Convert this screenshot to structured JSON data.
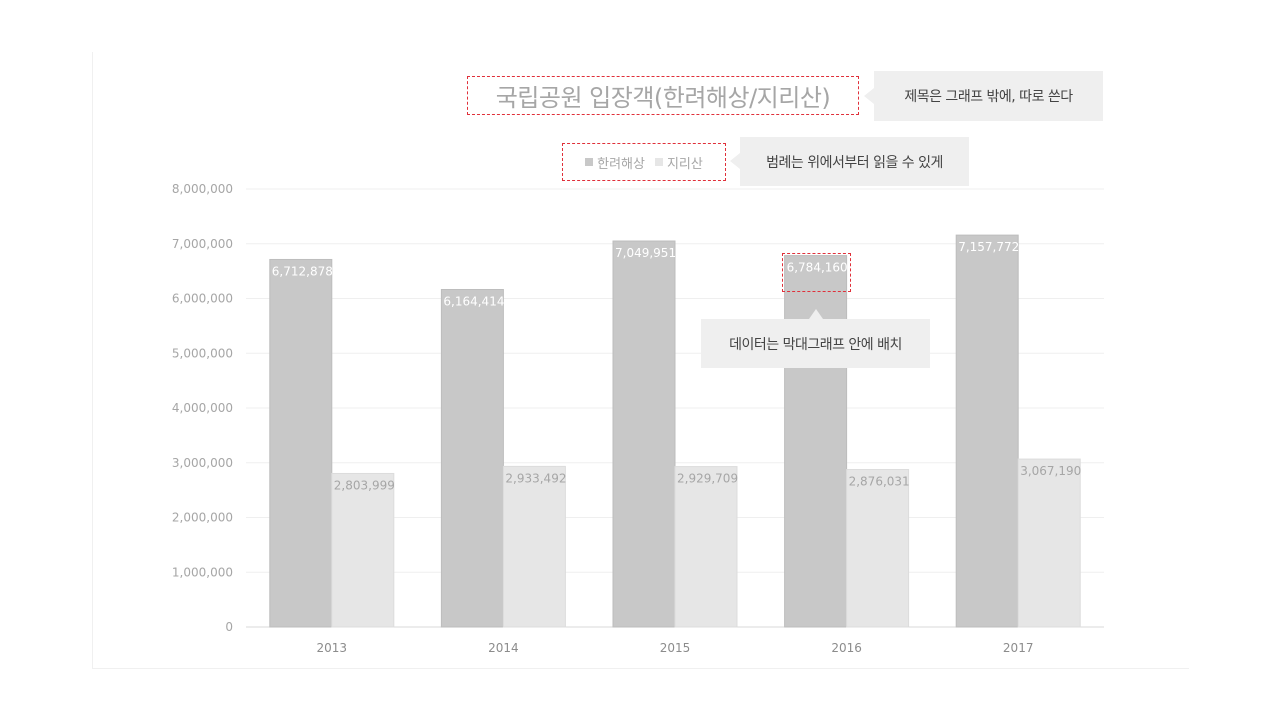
{
  "annotations": {
    "title_note": "제목은 그래프 밖에, 따로 쓴다",
    "legend_note": "범례는 위에서부터 읽을 수 있게",
    "data_note": "데이터는 막대그래프 안에 배치"
  },
  "colors": {
    "series_a": "#c8c8c8",
    "series_b": "#e6e6e6",
    "highlight_border": "#e0303a",
    "note_bg": "#efefef"
  },
  "chart_data": {
    "type": "bar",
    "title": "국립공원 입장객(한려해상/지리산)",
    "categories": [
      "2013",
      "2014",
      "2015",
      "2016",
      "2017"
    ],
    "series": [
      {
        "name": "한려해상",
        "values": [
          6712878,
          6164414,
          7049951,
          6784160,
          7157772
        ],
        "labels": [
          "6,712,878",
          "6,164,414",
          "7,049,951",
          "6,784,160",
          "7,157,772"
        ]
      },
      {
        "name": "지리산",
        "values": [
          2803999,
          2933492,
          2929709,
          2876031,
          3067190
        ],
        "labels": [
          "2,803,999",
          "2,933,492",
          "2,929,709",
          "2,876,031",
          "3,067,190"
        ]
      }
    ],
    "ylim": [
      0,
      8000000
    ],
    "yticks": [
      "0",
      "1,000,000",
      "2,000,000",
      "3,000,000",
      "4,000,000",
      "5,000,000",
      "6,000,000",
      "7,000,000",
      "8,000,000"
    ],
    "grid": true,
    "legend_position": "top",
    "data_labels_position": "inside-top"
  }
}
